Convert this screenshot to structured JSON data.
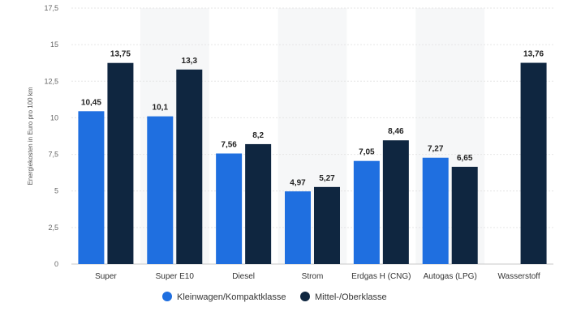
{
  "chart_data": {
    "type": "bar",
    "title": "",
    "xlabel": "",
    "ylabel": "Energiekosten in Euro pro 100 km",
    "categories": [
      "Super",
      "Super E10",
      "Diesel",
      "Strom",
      "Erdgas H (CNG)",
      "Autogas (LPG)",
      "Wasserstoff"
    ],
    "series": [
      {
        "name": "Kleinwagen/Kompaktklasse",
        "color": "#1f6fe0",
        "values": [
          10.45,
          10.1,
          7.56,
          4.97,
          7.05,
          7.27,
          null
        ],
        "labels": [
          "10,45",
          "10,1",
          "7,56",
          "4,97",
          "7,05",
          "7,27",
          ""
        ]
      },
      {
        "name": "Mittel-/Oberklasse",
        "color": "#0f2640",
        "values": [
          13.75,
          13.3,
          8.2,
          5.27,
          8.46,
          6.65,
          13.76
        ],
        "labels": [
          "13,75",
          "13,3",
          "8,2",
          "5,27",
          "8,46",
          "6,65",
          "13,76"
        ]
      }
    ],
    "ylim": [
      0,
      17.5
    ],
    "yticks": [
      0,
      2.5,
      5,
      7.5,
      10,
      12.5,
      15,
      17.5
    ],
    "ytick_labels": [
      "0",
      "2,5",
      "5",
      "7,5",
      "10",
      "12,5",
      "15",
      "17,5"
    ],
    "grid": true,
    "legend_position": "bottom-center"
  }
}
